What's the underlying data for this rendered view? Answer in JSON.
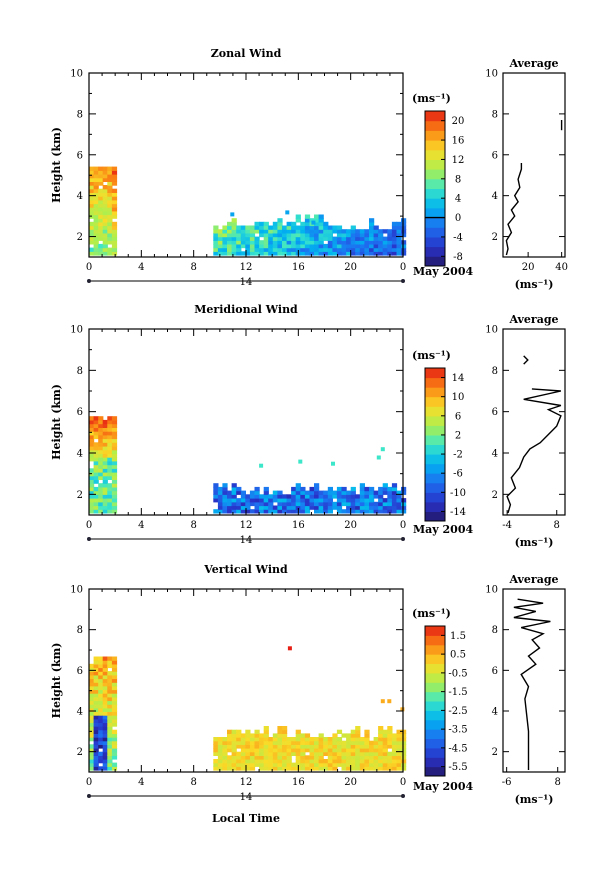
{
  "chart_data": [
    {
      "type": "heatmap",
      "title": "Zonal Wind",
      "xlabel": "",
      "ylabel": "Height (km)",
      "xlim": [
        0,
        24
      ],
      "ylim": [
        1,
        10
      ],
      "x_ticks": [
        "0",
        "4",
        "8",
        "12",
        "16",
        "20",
        "0"
      ],
      "y_ticks": [
        "2",
        "4",
        "6",
        "8",
        "10"
      ],
      "day_label": "14",
      "date_label": "May 2004",
      "colorbar": {
        "unit": "(ms⁻¹)",
        "min": -8,
        "max": 22,
        "ticks": [
          "20",
          "16",
          "12",
          "8",
          "4",
          "0",
          "-4",
          "-8"
        ],
        "contour_at": "0"
      },
      "data_blocks": [
        {
          "x0": 0.0,
          "x1": 2.0,
          "y0": 1.1,
          "y1": 5.4,
          "note": "strong westerly 8-18"
        },
        {
          "x0": 9.5,
          "x1": 24.0,
          "y0": 1.1,
          "y1": 2.8,
          "note": "weak 0-6, negative near 18-24"
        }
      ],
      "average_profile": {
        "title": "Average",
        "xlabel": "(ms⁻¹)",
        "xlim": [
          5,
          42
        ],
        "x_ticks": [
          "20",
          "40"
        ],
        "y_ticks": [
          "2",
          "4",
          "6",
          "8",
          "10"
        ],
        "points": [
          [
            7,
            1.1
          ],
          [
            8,
            1.4
          ],
          [
            7,
            1.8
          ],
          [
            10,
            2.2
          ],
          [
            8,
            2.6
          ],
          [
            12,
            3.0
          ],
          [
            10,
            3.3
          ],
          [
            14,
            3.7
          ],
          [
            12,
            4.0
          ],
          [
            15,
            4.4
          ],
          [
            14,
            4.8
          ],
          [
            16,
            5.3
          ],
          [
            16,
            5.6
          ]
        ],
        "upper_points": [
          [
            40,
            7.2
          ],
          [
            40,
            7.7
          ]
        ]
      }
    },
    {
      "type": "heatmap",
      "title": "Meridional Wind",
      "xlabel": "",
      "ylabel": "Height (km)",
      "xlim": [
        0,
        24
      ],
      "ylim": [
        1,
        10
      ],
      "x_ticks": [
        "0",
        "4",
        "8",
        "12",
        "16",
        "20",
        "0"
      ],
      "y_ticks": [
        "2",
        "4",
        "6",
        "8",
        "10"
      ],
      "day_label": "14",
      "date_label": "May 2004",
      "colorbar": {
        "unit": "(ms⁻¹)",
        "min": -16,
        "max": 16,
        "ticks": [
          "14",
          "10",
          "6",
          "2",
          "-2",
          "-6",
          "-10",
          "-14"
        ],
        "contour_at": "0"
      },
      "data_blocks": [
        {
          "x0": 0.0,
          "x1": 2.0,
          "y0": 1.1,
          "y1": 5.6,
          "note": "southerly 4-14 aloft, weaker near surface"
        },
        {
          "x0": 9.5,
          "x1": 24.0,
          "y0": 1.1,
          "y1": 2.5,
          "note": "northerly -4 to -12"
        }
      ],
      "average_profile": {
        "title": "Average",
        "xlabel": "(ms⁻¹)",
        "xlim": [
          -5,
          10
        ],
        "x_ticks": [
          "-4",
          "8"
        ],
        "y_ticks": [
          "2",
          "4",
          "6",
          "8",
          "10"
        ],
        "points": [
          [
            -3.8,
            1.1
          ],
          [
            -3.2,
            1.5
          ],
          [
            -4,
            1.9
          ],
          [
            -2,
            2.3
          ],
          [
            -3,
            2.8
          ],
          [
            -1,
            3.3
          ],
          [
            0,
            3.8
          ],
          [
            1.5,
            4.2
          ],
          [
            4,
            4.5
          ],
          [
            6,
            4.9
          ],
          [
            8,
            5.3
          ],
          [
            9,
            5.8
          ],
          [
            6,
            6.1
          ],
          [
            9,
            6.3
          ],
          [
            0,
            6.6
          ],
          [
            9,
            7.0
          ],
          [
            2,
            7.1
          ]
        ],
        "upper_points": [
          [
            0,
            8.3
          ],
          [
            1,
            8.5
          ],
          [
            0,
            8.7
          ]
        ]
      }
    },
    {
      "type": "heatmap",
      "title": "Vertical Wind",
      "xlabel": "Local Time",
      "ylabel": "Height (km)",
      "xlim": [
        0,
        24
      ],
      "ylim": [
        1,
        10
      ],
      "x_ticks": [
        "0",
        "4",
        "8",
        "12",
        "16",
        "20",
        "0"
      ],
      "y_ticks": [
        "2",
        "4",
        "6",
        "8",
        "10"
      ],
      "day_label": "14",
      "date_label": "May 2004",
      "colorbar": {
        "unit": "(ms⁻¹)",
        "min": -7,
        "max": 2,
        "ticks": [
          "1.5",
          "0.5",
          "-0.5",
          "-1.5",
          "-2.5",
          "-3.5",
          "-4.5",
          "-5.5"
        ]
      },
      "data_blocks": [
        {
          "x0": 0.0,
          "x1": 2.0,
          "y0": 1.1,
          "y1": 6.5,
          "note": "strong downward -2 to -6 near surface"
        },
        {
          "x0": 9.5,
          "x1": 24.0,
          "y0": 1.1,
          "y1": 3.2,
          "note": "near 0 to +1"
        }
      ],
      "average_profile": {
        "title": "Average",
        "xlabel": "(ms⁻¹)",
        "xlim": [
          -7,
          10
        ],
        "x_ticks": [
          "-6",
          "8"
        ],
        "y_ticks": [
          "2",
          "4",
          "6",
          "8",
          "10"
        ],
        "points": [
          [
            0,
            1.1
          ],
          [
            0,
            2.0
          ],
          [
            0,
            3.0
          ],
          [
            -0.5,
            3.8
          ],
          [
            -1,
            4.6
          ],
          [
            0,
            5.2
          ],
          [
            -2,
            5.8
          ],
          [
            2,
            6.3
          ],
          [
            0,
            6.7
          ],
          [
            3,
            7.1
          ],
          [
            1,
            7.5
          ],
          [
            4,
            7.8
          ],
          [
            -2,
            8.1
          ],
          [
            6,
            8.4
          ],
          [
            -4,
            8.6
          ],
          [
            2,
            8.9
          ],
          [
            -4,
            9.1
          ],
          [
            4,
            9.3
          ],
          [
            -3,
            9.5
          ]
        ],
        "upper_points": []
      }
    }
  ]
}
